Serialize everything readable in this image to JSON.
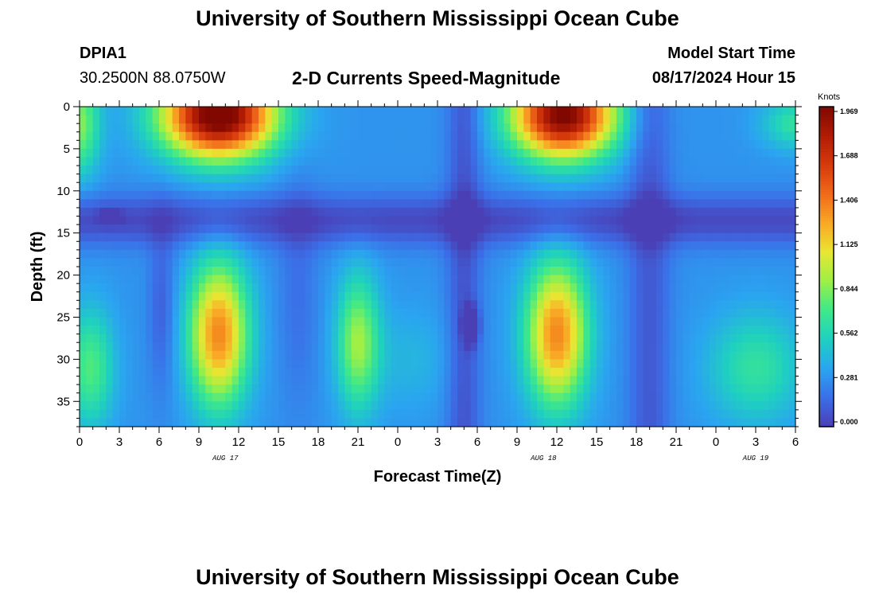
{
  "header": {
    "title": "University of Southern Mississippi Ocean Cube",
    "station_id": "DPIA1",
    "coordinates": "30.2500N  88.0750W",
    "subtitle": "2-D Currents Speed-Magnitude",
    "model_start_label": "Model Start Time",
    "model_start_value": "08/17/2024 Hour 15"
  },
  "footer": {
    "title": "University of Southern Mississippi Ocean Cube"
  },
  "chart_data": {
    "type": "heatmap",
    "title": "2-D Currents Speed-Magnitude",
    "xlabel": "Forecast Time(Z)",
    "ylabel": "Depth (ft)",
    "x_tick_labels": [
      "0",
      "3",
      "6",
      "9",
      "12",
      "15",
      "18",
      "21",
      "0",
      "3",
      "6",
      "9",
      "12",
      "15",
      "18",
      "21",
      "0",
      "3",
      "6"
    ],
    "x_hours_range": [
      0,
      54
    ],
    "y_tick_labels": [
      "0",
      "5",
      "10",
      "15",
      "20",
      "25",
      "30",
      "35"
    ],
    "ylim": [
      0,
      38
    ],
    "y_inverted": true,
    "date_labels": [
      {
        "text": "AUG 17",
        "hour": 11
      },
      {
        "text": "AUG 18",
        "hour": 35
      },
      {
        "text": "AUG 19",
        "hour": 51
      }
    ],
    "colorbar": {
      "unit_label": "Knots",
      "tick_labels": [
        "1.969",
        "1.688",
        "1.406",
        "1.125",
        "0.844",
        "0.562",
        "0.281",
        "0.000"
      ],
      "vmin": 0.0,
      "vmax": 1.969,
      "colormap": [
        "#4a3fb5",
        "#3b6fe8",
        "#2aa5f0",
        "#1fd0c0",
        "#3ee88a",
        "#9cf046",
        "#e8e632",
        "#f9a825",
        "#f06a1a",
        "#d63a0c",
        "#b01c05",
        "#800800"
      ]
    },
    "features": [
      {
        "hour_center": 10.5,
        "depth_center": 2.5,
        "peak_knots": 1.95
      },
      {
        "hour_center": 36.5,
        "depth_center": 3.0,
        "peak_knots": 1.85
      },
      {
        "hour_center": 10.5,
        "depth_center": 26.0,
        "peak_knots": 1.3
      },
      {
        "hour_center": 21.0,
        "depth_center": 27.0,
        "peak_knots": 0.85
      },
      {
        "hour_center": 36.0,
        "depth_center": 26.0,
        "peak_knots": 1.3
      },
      {
        "hour_center": 51.0,
        "depth_center": 30.0,
        "peak_knots": 0.6
      },
      {
        "hour_center": 1.0,
        "depth_center": 30.0,
        "peak_knots": 0.75
      },
      {
        "hour_center": 29.5,
        "depth_center": 26.0,
        "peak_knots": 0.0
      }
    ]
  }
}
